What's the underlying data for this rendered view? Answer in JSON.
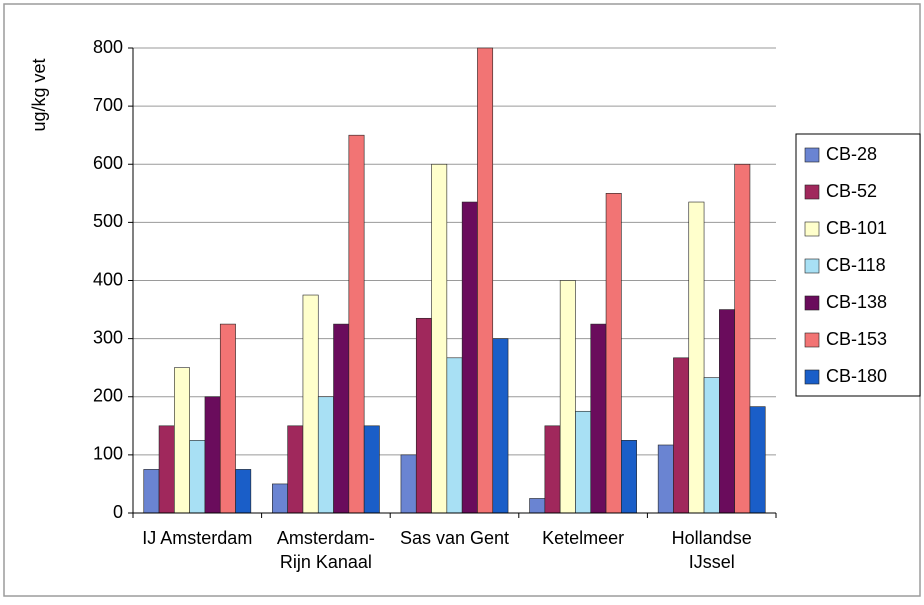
{
  "chart_data": {
    "type": "bar",
    "y_label": "ug/kg vet",
    "categories": [
      "IJ Amsterdam",
      "Amsterdam-\nRijn Kanaal",
      "Sas van Gent",
      "Ketelmeer",
      "Hollandse\nIJssel"
    ],
    "series": [
      {
        "name": "CB-28",
        "color": "#6a84d2",
        "values": [
          75,
          50,
          100,
          25,
          117
        ]
      },
      {
        "name": "CB-52",
        "color": "#a0285c",
        "values": [
          150,
          150,
          335,
          150,
          267
        ]
      },
      {
        "name": "CB-101",
        "color": "#ffffcc",
        "values": [
          250,
          375,
          600,
          400,
          535
        ]
      },
      {
        "name": "CB-118",
        "color": "#a8e0f4",
        "values": [
          125,
          200,
          267,
          175,
          233
        ]
      },
      {
        "name": "CB-138",
        "color": "#6a0c5c",
        "values": [
          200,
          325,
          535,
          325,
          350
        ]
      },
      {
        "name": "CB-153",
        "color": "#f27474",
        "values": [
          325,
          650,
          800,
          550,
          600
        ]
      },
      {
        "name": "CB-180",
        "color": "#1a5ec8",
        "values": [
          75,
          150,
          300,
          125,
          183
        ]
      }
    ],
    "ylim": [
      0,
      800
    ],
    "yticks": [
      0,
      100,
      200,
      300,
      400,
      500,
      600,
      700,
      800
    ],
    "grid": true
  }
}
